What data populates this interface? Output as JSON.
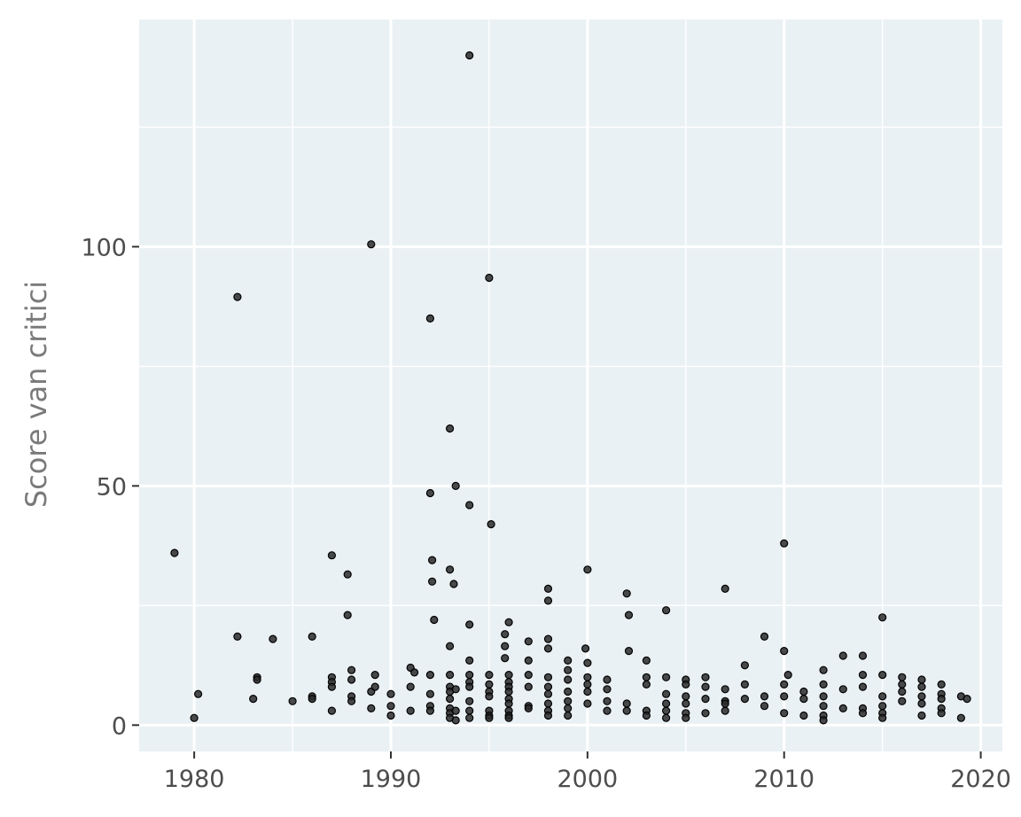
{
  "chart_data": {
    "type": "scatter",
    "title": "",
    "xlabel": "",
    "ylabel": "Score van critici",
    "xlim": [
      1977.2,
      2021.1
    ],
    "ylim": [
      -5.5,
      147.5
    ],
    "x_ticks": [
      1980,
      1990,
      2000,
      2010,
      2020
    ],
    "x_minor_ticks": [
      1985,
      1995,
      2005,
      2015
    ],
    "y_ticks": [
      0,
      50,
      100
    ],
    "y_minor_ticks": [
      25,
      75,
      125
    ],
    "x_tick_labels": [
      "1980",
      "1990",
      "2000",
      "2010",
      "2020"
    ],
    "y_tick_labels": [
      "0",
      "50",
      "100"
    ],
    "grid": true,
    "legend": "none",
    "colors": {
      "panel_background": "#eaf1f4",
      "grid_line": "#ffffff",
      "point_fill": "#2a2a2a",
      "point_stroke": "#000000"
    },
    "points": [
      [
        1979,
        36
      ],
      [
        1980,
        1.5
      ],
      [
        1980.2,
        6.5
      ],
      [
        1982.2,
        89.5
      ],
      [
        1982.2,
        18.5
      ],
      [
        1983,
        5.5
      ],
      [
        1983.2,
        10
      ],
      [
        1983.2,
        9.5
      ],
      [
        1984,
        18
      ],
      [
        1985,
        5
      ],
      [
        1986,
        18.5
      ],
      [
        1986,
        6
      ],
      [
        1986,
        5.5
      ],
      [
        1987,
        35.5
      ],
      [
        1987,
        10
      ],
      [
        1987,
        9
      ],
      [
        1987,
        8
      ],
      [
        1987,
        3
      ],
      [
        1987.8,
        31.5
      ],
      [
        1987.8,
        23
      ],
      [
        1988,
        11.5
      ],
      [
        1988,
        9.5
      ],
      [
        1988,
        6
      ],
      [
        1988,
        5
      ],
      [
        1989,
        100.5
      ],
      [
        1989,
        7
      ],
      [
        1989.2,
        10.5
      ],
      [
        1989.2,
        8
      ],
      [
        1989,
        3.5
      ],
      [
        1990,
        6.5
      ],
      [
        1990,
        4
      ],
      [
        1990,
        2
      ],
      [
        1991,
        12
      ],
      [
        1991.2,
        11
      ],
      [
        1991,
        8
      ],
      [
        1991,
        3
      ],
      [
        1992,
        85
      ],
      [
        1992,
        48.5
      ],
      [
        1992.1,
        34.5
      ],
      [
        1992.1,
        30
      ],
      [
        1992.2,
        22
      ],
      [
        1992,
        10.5
      ],
      [
        1992,
        6.5
      ],
      [
        1992,
        4
      ],
      [
        1992,
        3
      ],
      [
        1993,
        62
      ],
      [
        1993.3,
        50
      ],
      [
        1993,
        32.5
      ],
      [
        1993.2,
        29.5
      ],
      [
        1993,
        16.5
      ],
      [
        1993,
        10.5
      ],
      [
        1993,
        8
      ],
      [
        1993,
        7
      ],
      [
        1993,
        5.5
      ],
      [
        1993,
        3.5
      ],
      [
        1993,
        2.5
      ],
      [
        1993,
        1.5
      ],
      [
        1993.3,
        1
      ],
      [
        1993.3,
        7.5
      ],
      [
        1993.3,
        3
      ],
      [
        1994,
        140
      ],
      [
        1994,
        46
      ],
      [
        1994,
        21
      ],
      [
        1994,
        13.5
      ],
      [
        1994,
        10.5
      ],
      [
        1994,
        9
      ],
      [
        1994,
        8
      ],
      [
        1994,
        5
      ],
      [
        1994,
        3
      ],
      [
        1994,
        1.5
      ],
      [
        1995,
        93.5
      ],
      [
        1995.1,
        42
      ],
      [
        1995,
        10.5
      ],
      [
        1995,
        8.5
      ],
      [
        1995,
        7
      ],
      [
        1995,
        6
      ],
      [
        1995,
        3
      ],
      [
        1995,
        2
      ],
      [
        1995,
        1.5
      ],
      [
        1996,
        21.5
      ],
      [
        1995.8,
        19
      ],
      [
        1995.8,
        16.5
      ],
      [
        1995.8,
        14
      ],
      [
        1996,
        10.5
      ],
      [
        1996,
        9
      ],
      [
        1996,
        8
      ],
      [
        1996,
        7
      ],
      [
        1996,
        5.5
      ],
      [
        1996,
        4.5
      ],
      [
        1996,
        3
      ],
      [
        1996,
        2
      ],
      [
        1996,
        1.5
      ],
      [
        1997,
        17.5
      ],
      [
        1997,
        13.5
      ],
      [
        1997,
        10.5
      ],
      [
        1997,
        8
      ],
      [
        1997,
        4
      ],
      [
        1997,
        3.5
      ],
      [
        1998,
        28.5
      ],
      [
        1998,
        26
      ],
      [
        1998,
        18
      ],
      [
        1998,
        16
      ],
      [
        1998,
        10
      ],
      [
        1998,
        8
      ],
      [
        1998,
        6.5
      ],
      [
        1998,
        4.5
      ],
      [
        1998,
        3
      ],
      [
        1998,
        2
      ],
      [
        1999,
        13.5
      ],
      [
        1999,
        11.5
      ],
      [
        1999,
        9.5
      ],
      [
        1999,
        7
      ],
      [
        1999,
        5
      ],
      [
        1999,
        3.5
      ],
      [
        1999,
        2
      ],
      [
        2000,
        32.5
      ],
      [
        1999.9,
        16
      ],
      [
        2000,
        13
      ],
      [
        2000,
        10
      ],
      [
        2000,
        8.5
      ],
      [
        2000,
        7
      ],
      [
        2000,
        4.5
      ],
      [
        2001,
        9.5
      ],
      [
        2001,
        7.5
      ],
      [
        2001,
        5
      ],
      [
        2001,
        3
      ],
      [
        2002,
        27.5
      ],
      [
        2002.1,
        23
      ],
      [
        2002.1,
        15.5
      ],
      [
        2002,
        4.5
      ],
      [
        2002,
        3
      ],
      [
        2003,
        13.5
      ],
      [
        2003,
        10
      ],
      [
        2003,
        8.5
      ],
      [
        2003,
        3
      ],
      [
        2003,
        2
      ],
      [
        2004,
        24
      ],
      [
        2004,
        10
      ],
      [
        2004,
        6.5
      ],
      [
        2004,
        4.5
      ],
      [
        2004,
        3
      ],
      [
        2004,
        1.5
      ],
      [
        2005,
        9.5
      ],
      [
        2005,
        8.5
      ],
      [
        2005,
        6
      ],
      [
        2005,
        4.5
      ],
      [
        2005,
        2.5
      ],
      [
        2005,
        1.5
      ],
      [
        2006,
        10
      ],
      [
        2006,
        8
      ],
      [
        2006,
        5.5
      ],
      [
        2006,
        2.5
      ],
      [
        2007,
        28.5
      ],
      [
        2007,
        7.5
      ],
      [
        2007,
        5
      ],
      [
        2007,
        4.5
      ],
      [
        2007,
        3
      ],
      [
        2008,
        12.5
      ],
      [
        2008,
        8.5
      ],
      [
        2008,
        5.5
      ],
      [
        2009,
        18.5
      ],
      [
        2009,
        6
      ],
      [
        2009,
        4
      ],
      [
        2010,
        38
      ],
      [
        2010,
        15.5
      ],
      [
        2010.2,
        10.5
      ],
      [
        2010,
        8.5
      ],
      [
        2010,
        6
      ],
      [
        2010,
        2.5
      ],
      [
        2011,
        7
      ],
      [
        2011,
        5.5
      ],
      [
        2011,
        2
      ],
      [
        2012,
        11.5
      ],
      [
        2012,
        8.5
      ],
      [
        2012,
        6
      ],
      [
        2012,
        4
      ],
      [
        2012,
        2
      ],
      [
        2012,
        1
      ],
      [
        2013,
        14.5
      ],
      [
        2013,
        7.5
      ],
      [
        2013,
        3.5
      ],
      [
        2014,
        14.5
      ],
      [
        2014,
        10.5
      ],
      [
        2014,
        8
      ],
      [
        2014,
        3.5
      ],
      [
        2014,
        2.5
      ],
      [
        2015,
        22.5
      ],
      [
        2015,
        10.5
      ],
      [
        2015,
        6
      ],
      [
        2015,
        4
      ],
      [
        2015,
        2.5
      ],
      [
        2015,
        1.5
      ],
      [
        2016,
        10
      ],
      [
        2016,
        8.5
      ],
      [
        2016,
        7
      ],
      [
        2016,
        5
      ],
      [
        2017,
        9.5
      ],
      [
        2017,
        8
      ],
      [
        2017,
        6
      ],
      [
        2017,
        4.5
      ],
      [
        2017,
        2
      ],
      [
        2018,
        8.5
      ],
      [
        2018,
        6.5
      ],
      [
        2018,
        5.5
      ],
      [
        2018,
        3.5
      ],
      [
        2018,
        2.5
      ],
      [
        2019,
        6
      ],
      [
        2019,
        1.5
      ],
      [
        2019.3,
        5.5
      ]
    ]
  }
}
